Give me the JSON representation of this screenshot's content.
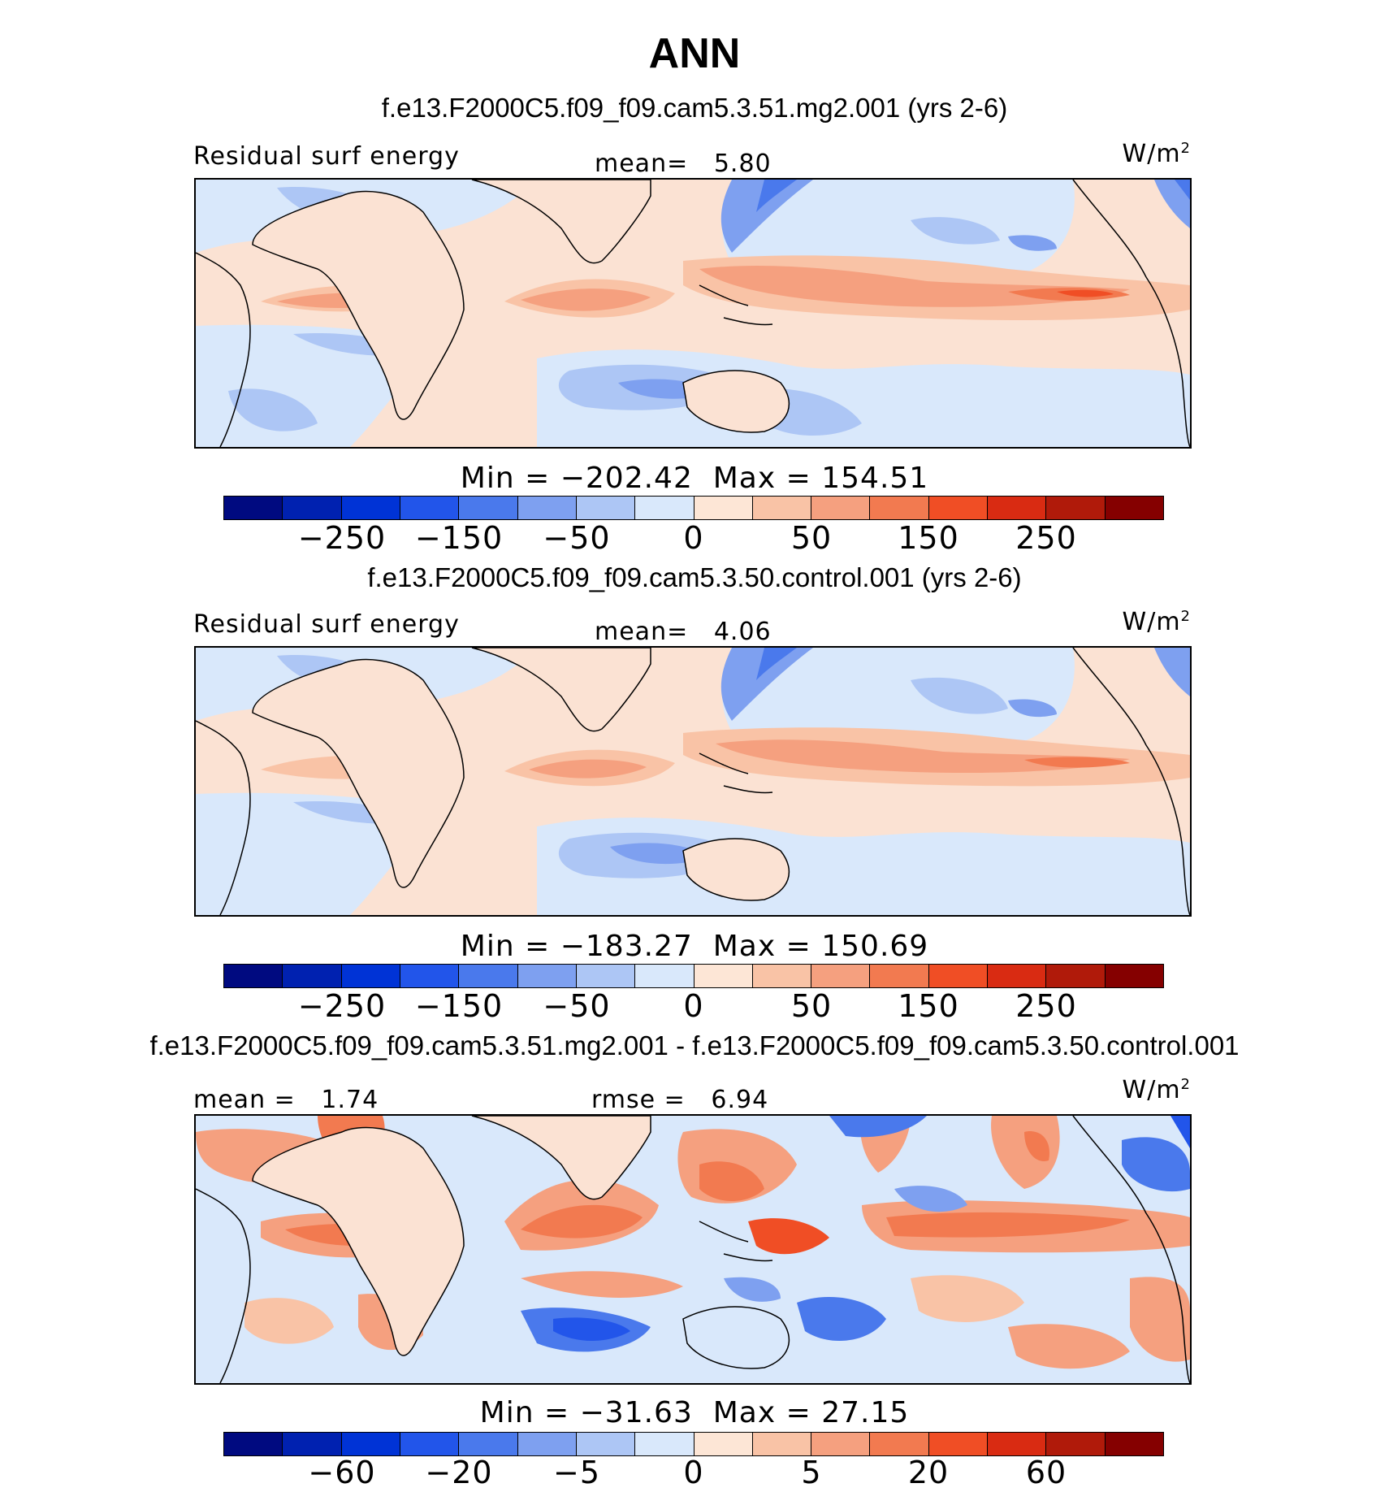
{
  "title": "ANN",
  "field_label": "Residual surf energy",
  "unit_base": "W/m",
  "unit_exp": "2",
  "panels": [
    {
      "case": "f.e13.F2000C5.f09_f09.cam5.3.51.mg2.001 (yrs 2-6)",
      "mean_label": "mean=",
      "mean_value": "5.80",
      "min_label": "Min =",
      "min_value": "−202.42",
      "max_label": "Max =",
      "max_value": "154.51",
      "ticks": [
        "−250",
        "−150",
        "−50",
        "0",
        "50",
        "150",
        "250"
      ]
    },
    {
      "case": "f.e13.F2000C5.f09_f09.cam5.3.50.control.001 (yrs 2-6)",
      "mean_label": "mean=",
      "mean_value": "4.06",
      "min_label": "Min =",
      "min_value": "−183.27",
      "max_label": "Max =",
      "max_value": "150.69",
      "ticks": [
        "−250",
        "−150",
        "−50",
        "0",
        "50",
        "150",
        "250"
      ]
    },
    {
      "case": "f.e13.F2000C5.f09_f09.cam5.3.51.mg2.001 - f.e13.F2000C5.f09_f09.cam5.3.50.control.001",
      "mean_label": "mean =",
      "mean_value": "1.74",
      "rmse_label": "rmse =",
      "rmse_value": "6.94",
      "min_label": "Min =",
      "min_value": "−31.63",
      "max_label": "Max =",
      "max_value": "27.15",
      "ticks": [
        "−60",
        "−20",
        "−5",
        "0",
        "5",
        "20",
        "60"
      ]
    }
  ],
  "colorbar_colors": [
    "#000a80",
    "#0021b0",
    "#0033d6",
    "#2255ea",
    "#4a79ec",
    "#7ea0f0",
    "#adc6f5",
    "#d9e8fb",
    "#fde6d6",
    "#f9c3a6",
    "#f5a07f",
    "#f27a50",
    "#f04e25",
    "#d92b12",
    "#b01a0a",
    "#850000"
  ]
}
